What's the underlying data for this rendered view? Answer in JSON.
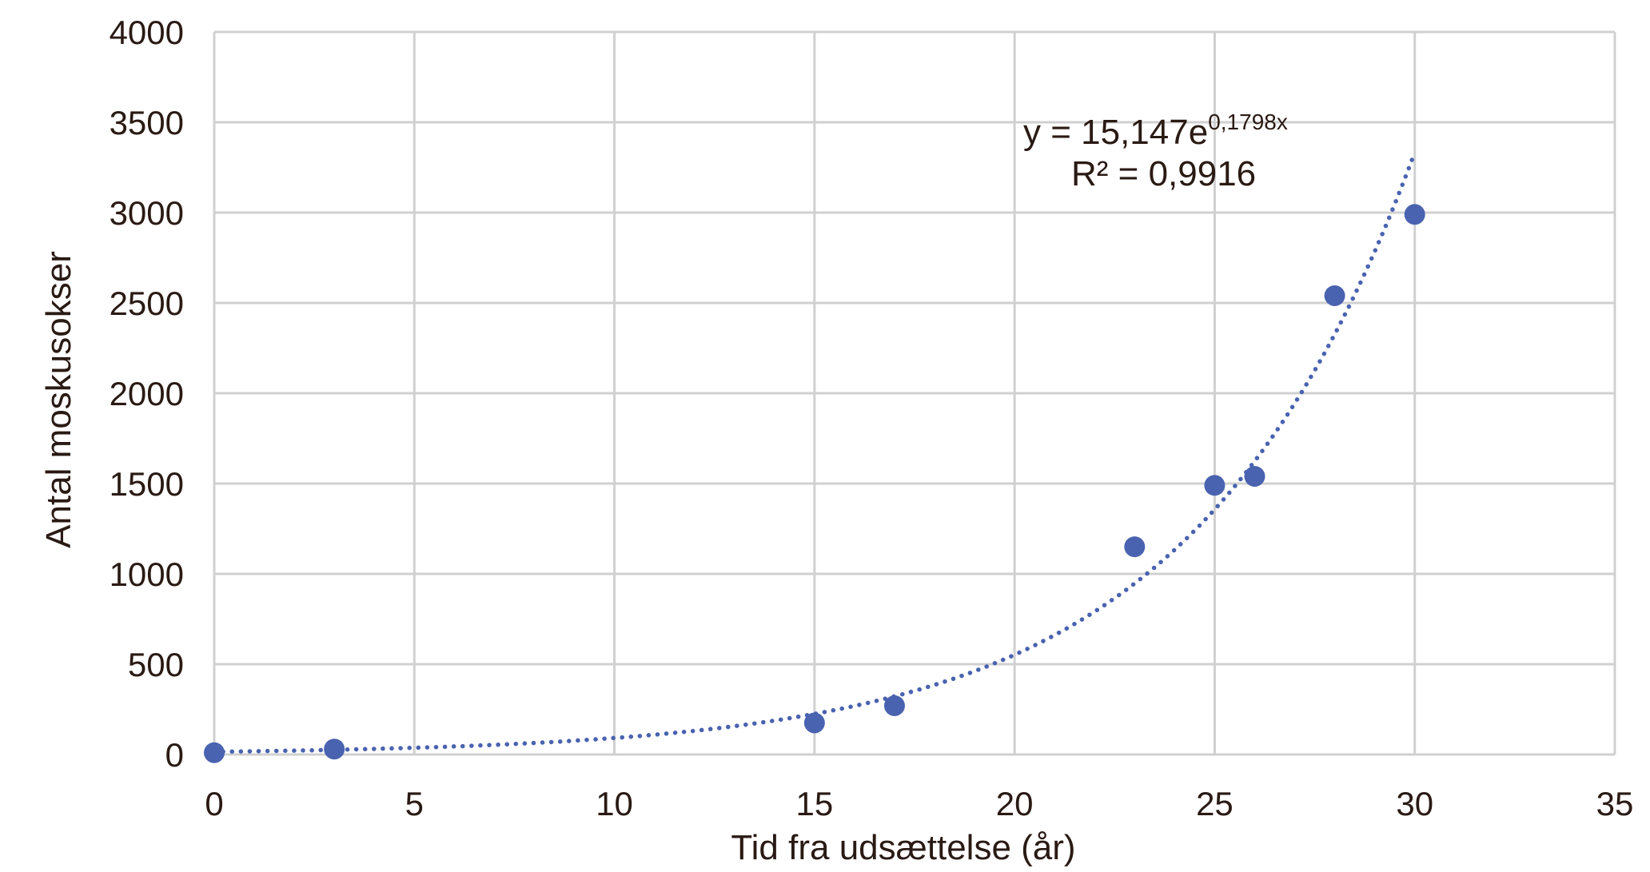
{
  "chart_data": {
    "type": "scatter",
    "xlabel": "Tid fra udsættelse (år)",
    "ylabel": "Antal moskusokser",
    "xlim": [
      0,
      35
    ],
    "ylim": [
      0,
      4000
    ],
    "x_ticks": [
      "0",
      "5",
      "10",
      "15",
      "20",
      "25",
      "30",
      "35"
    ],
    "y_ticks": [
      "0",
      "500",
      "1000",
      "1500",
      "2000",
      "2500",
      "3000",
      "3500",
      "4000"
    ],
    "grid": true,
    "marker_color": "#4a63b0",
    "trend_color": "#4a63b0",
    "series": [
      {
        "points": [
          {
            "x": 0,
            "y": 10
          },
          {
            "x": 3,
            "y": 30
          },
          {
            "x": 15,
            "y": 175
          },
          {
            "x": 17,
            "y": 270
          },
          {
            "x": 23,
            "y": 1150
          },
          {
            "x": 25,
            "y": 1490
          },
          {
            "x": 26,
            "y": 1540
          },
          {
            "x": 28,
            "y": 2540
          },
          {
            "x": 30,
            "y": 2990
          }
        ]
      }
    ],
    "trendline": {
      "type": "exponential",
      "a": 15.147,
      "b": 0.1798,
      "x_range": [
        0,
        30
      ],
      "equation_main": "y = 15,147e",
      "equation_exp": "0,1798x",
      "r2_label": "R² = 0,9916"
    }
  }
}
